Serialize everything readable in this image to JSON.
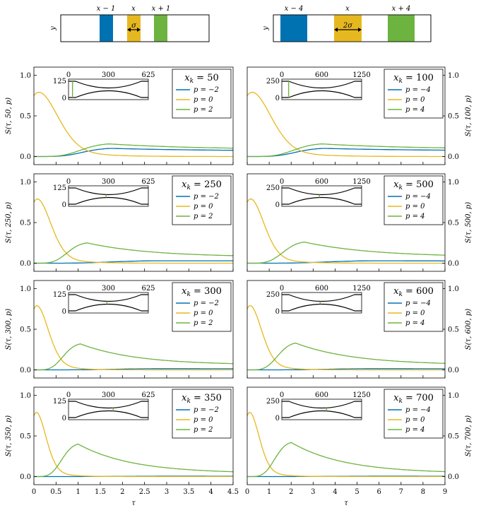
{
  "colors": {
    "blue": "#0072b2",
    "yellow": "#e6b820",
    "green": "#6db33f",
    "frame": "#000000"
  },
  "schematics": [
    {
      "ylabel": "y",
      "labels": [
        "x − 1",
        "x",
        "x + 1"
      ],
      "width_label": "σ"
    },
    {
      "ylabel": "y",
      "labels": [
        "x − 4",
        "x",
        "x + 4"
      ],
      "width_label": "2σ"
    }
  ],
  "axes": {
    "xlabel": "τ",
    "left_xticks": [
      "0",
      "0.5",
      "1",
      "1.5",
      "2",
      "2.5",
      "3",
      "3.5",
      "4",
      "4.5"
    ],
    "right_xticks": [
      "0",
      "1",
      "2",
      "3",
      "4",
      "5",
      "6",
      "7",
      "8",
      "9"
    ],
    "yticks": [
      "0.0",
      "0.5",
      "1.0"
    ]
  },
  "chart_data": [
    {
      "type": "line",
      "title": "x_k = 50",
      "ylabel": "S(τ, 50, p)",
      "xlim": [
        0,
        4.5
      ],
      "ylim": [
        -0.1,
        1.1
      ],
      "inset": {
        "ticks": [
          "0",
          "300",
          "625"
        ],
        "yticks": [
          "125",
          "0"
        ],
        "marker_fraction": 0.05
      },
      "series": [
        {
          "name": "p = −2",
          "peak": 0.1,
          "peak_t": 1.75,
          "tail": 0.068
        },
        {
          "name": "p = 0",
          "decay": 1.0
        },
        {
          "name": "p = 2",
          "peak": 0.155,
          "peak_t": 1.7,
          "tail": 0.085
        }
      ]
    },
    {
      "type": "line",
      "title": "x_k = 100",
      "ylabel": "S(τ, 100, p)",
      "xlim": [
        0,
        9
      ],
      "ylim": [
        -0.1,
        1.1
      ],
      "inset": {
        "ticks": [
          "0",
          "600",
          "1250"
        ],
        "yticks": [
          "250",
          "0"
        ],
        "marker_fraction": 0.085
      },
      "series": [
        {
          "name": "p = −4",
          "peak": 0.1,
          "peak_t": 3.5,
          "tail": 0.07
        },
        {
          "name": "p = 0",
          "decay": 2.0
        },
        {
          "name": "p = 4",
          "peak": 0.155,
          "peak_t": 3.4,
          "tail": 0.09
        }
      ]
    },
    {
      "type": "line",
      "title": "x_k = 250",
      "ylabel": "S(τ, 250, p)",
      "xlim": [
        0,
        4.5
      ],
      "ylim": [
        -0.1,
        1.1
      ],
      "inset": {
        "ticks": [
          "0",
          "300",
          "625"
        ],
        "yticks": [
          "125",
          "0"
        ],
        "marker_fraction": 0.47
      },
      "series": [
        {
          "name": "p = −2",
          "peak": 0.03,
          "peak_t": 2.8,
          "tail": 0.028
        },
        {
          "name": "p = 0",
          "decay": 0.7
        },
        {
          "name": "p = 2",
          "peak": 0.25,
          "peak_t": 1.2,
          "tail": 0.075
        }
      ]
    },
    {
      "type": "line",
      "title": "x_k = 500",
      "ylabel": "S(τ, 500, p)",
      "xlim": [
        0,
        9
      ],
      "ylim": [
        -0.1,
        1.1
      ],
      "inset": {
        "ticks": [
          "0",
          "600",
          "1250"
        ],
        "yticks": [
          "250",
          "0"
        ],
        "marker_fraction": 0.47
      },
      "series": [
        {
          "name": "p = −4",
          "peak": 0.03,
          "peak_t": 5.8,
          "tail": 0.025
        },
        {
          "name": "p = 0",
          "decay": 1.4
        },
        {
          "name": "p = 4",
          "peak": 0.26,
          "peak_t": 2.6,
          "tail": 0.075
        }
      ]
    },
    {
      "type": "line",
      "title": "x_k = 300",
      "ylabel": "S(τ, 300, p)",
      "xlim": [
        0,
        4.5
      ],
      "ylim": [
        -0.1,
        1.1
      ],
      "inset": {
        "ticks": [
          "0",
          "300",
          "625"
        ],
        "yticks": [
          "125",
          "0"
        ],
        "marker_fraction": 0.48
      },
      "series": [
        {
          "name": "p = −2",
          "peak": 0.015,
          "peak_t": 2.9,
          "tail": 0.012
        },
        {
          "name": "p = 0",
          "decay": 0.6
        },
        {
          "name": "p = 2",
          "peak": 0.32,
          "peak_t": 1.05,
          "tail": 0.06
        }
      ]
    },
    {
      "type": "line",
      "title": "x_k = 600",
      "ylabel": "S(τ, 600, p)",
      "xlim": [
        0,
        9
      ],
      "ylim": [
        -0.1,
        1.1
      ],
      "inset": {
        "ticks": [
          "0",
          "600",
          "1250"
        ],
        "yticks": [
          "250",
          "0"
        ],
        "marker_fraction": 0.48
      },
      "series": [
        {
          "name": "p = −4",
          "peak": 0.015,
          "peak_t": 5.8,
          "tail": 0.012
        },
        {
          "name": "p = 0",
          "decay": 1.2
        },
        {
          "name": "p = 4",
          "peak": 0.33,
          "peak_t": 2.2,
          "tail": 0.06
        }
      ]
    },
    {
      "type": "line",
      "title": "x_k = 350",
      "ylabel": "S(τ, 350, p)",
      "xlim": [
        0,
        4.5
      ],
      "ylim": [
        -0.1,
        1.1
      ],
      "inset": {
        "ticks": [
          "0",
          "300",
          "625"
        ],
        "yticks": [
          "125",
          "0"
        ],
        "marker_fraction": 0.56
      },
      "series": [
        {
          "name": "p = −2",
          "peak": 0.005,
          "peak_t": 3.0,
          "tail": 0.004
        },
        {
          "name": "p = 0",
          "decay": 0.5
        },
        {
          "name": "p = 2",
          "peak": 0.4,
          "peak_t": 1.0,
          "tail": 0.04
        }
      ]
    },
    {
      "type": "line",
      "title": "x_k = 700",
      "ylabel": "S(τ, 700, p)",
      "xlim": [
        0,
        9
      ],
      "ylim": [
        -0.1,
        1.1
      ],
      "inset": {
        "ticks": [
          "0",
          "600",
          "1250"
        ],
        "yticks": [
          "250",
          "0"
        ],
        "marker_fraction": 0.56
      },
      "series": [
        {
          "name": "p = −4",
          "peak": 0.005,
          "peak_t": 6.0,
          "tail": 0.004
        },
        {
          "name": "p = 0",
          "decay": 1.0
        },
        {
          "name": "p = 4",
          "peak": 0.42,
          "peak_t": 2.0,
          "tail": 0.04
        }
      ]
    }
  ]
}
